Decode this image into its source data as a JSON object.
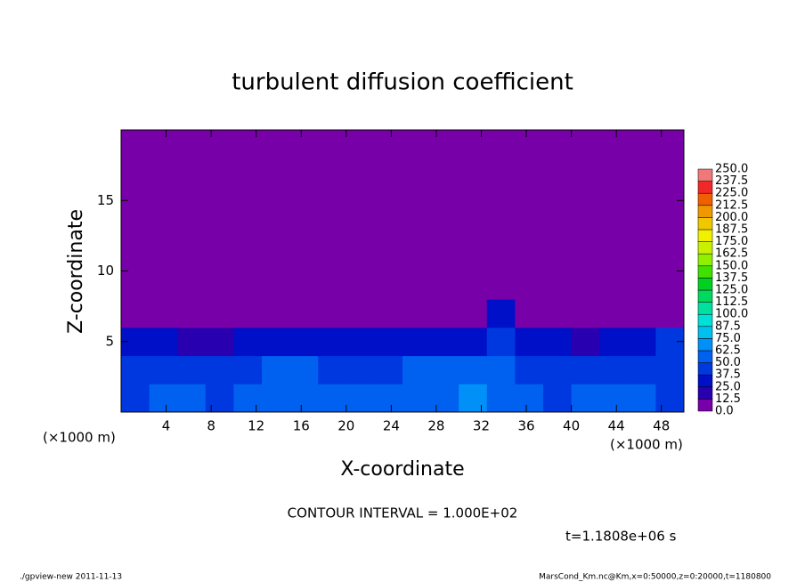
{
  "chart_data": {
    "type": "heatmap",
    "title": "turbulent diffusion coefficient",
    "x_label": "X-coordinate",
    "y_label": "Z-coordinate",
    "x_unit_labels": [
      "(×1000 m)",
      "(×1000 m)"
    ],
    "xlim": [
      0,
      50
    ],
    "ylim": [
      0,
      20
    ],
    "xticks": [
      4,
      8,
      12,
      16,
      20,
      24,
      28,
      32,
      36,
      40,
      44,
      48
    ],
    "yticks": [
      5,
      10,
      15
    ],
    "x_edges": [
      0,
      2.5,
      5,
      7.5,
      10,
      12.5,
      15,
      17.5,
      20,
      22.5,
      25,
      27.5,
      30,
      32.5,
      35,
      37.5,
      40,
      42.5,
      45,
      47.5,
      50
    ],
    "y_edges": [
      0,
      2,
      4,
      6,
      8,
      20
    ],
    "field": [
      [
        45,
        50,
        55,
        45,
        50,
        55,
        60,
        55,
        50,
        50,
        55,
        60,
        65,
        55,
        50,
        45,
        55,
        50,
        55,
        45
      ],
      [
        40,
        45,
        40,
        45,
        40,
        50,
        50,
        45,
        40,
        45,
        50,
        55,
        50,
        55,
        45,
        40,
        40,
        45,
        45,
        40
      ],
      [
        35,
        30,
        15,
        20,
        25,
        35,
        30,
        25,
        35,
        30,
        25,
        30,
        35,
        40,
        35,
        25,
        20,
        30,
        35,
        40
      ],
      [
        0,
        0,
        0,
        0,
        0,
        0,
        0,
        0,
        0,
        0,
        0,
        0,
        0,
        25,
        0,
        0,
        0,
        0,
        0,
        0
      ],
      [
        0,
        0,
        0,
        0,
        0,
        0,
        0,
        0,
        0,
        0,
        0,
        0,
        0,
        0,
        0,
        0,
        0,
        0,
        0,
        0
      ]
    ],
    "colorbar": {
      "levels": [
        {
          "value": 0,
          "label": "0.0"
        },
        {
          "value": 12.5,
          "label": "12.5"
        },
        {
          "value": 25,
          "label": "25.0"
        },
        {
          "value": 37.5,
          "label": "37.5"
        },
        {
          "value": 50,
          "label": "50.0"
        },
        {
          "value": 62.5,
          "label": "62.5"
        },
        {
          "value": 75,
          "label": "75.0"
        },
        {
          "value": 87.5,
          "label": "87.5"
        },
        {
          "value": 100,
          "label": "100.0"
        },
        {
          "value": 112.5,
          "label": "112.5"
        },
        {
          "value": 125,
          "label": "125.0"
        },
        {
          "value": 137.5,
          "label": "137.5"
        },
        {
          "value": 150,
          "label": "150.0"
        },
        {
          "value": 162.5,
          "label": "162.5"
        },
        {
          "value": 175,
          "label": "175.0"
        },
        {
          "value": 187.5,
          "label": "187.5"
        },
        {
          "value": 200,
          "label": "200.0"
        },
        {
          "value": 212.5,
          "label": "212.5"
        },
        {
          "value": 225,
          "label": "225.0"
        },
        {
          "value": 237.5,
          "label": "237.5"
        },
        {
          "value": 250,
          "label": "250.0"
        }
      ],
      "colors": [
        "#7800a8",
        "#2800b0",
        "#0010c8",
        "#0038e0",
        "#0060f0",
        "#0090f8",
        "#00c0f0",
        "#00e0d8",
        "#00e0a0",
        "#00d860",
        "#00d020",
        "#40e000",
        "#90f000",
        "#c8f000",
        "#f0f000",
        "#f0c800",
        "#f09800",
        "#f06000",
        "#f02828",
        "#f07878"
      ]
    },
    "annotations": [
      "CONTOUR INTERVAL = 1.000E+02",
      "t=1.1808e+06 s"
    ],
    "footer_left": "./gpview-new  2011-11-13",
    "footer_right": "MarsCond_Km.nc@Km,x=0:50000,z=0:20000,t=1180800"
  }
}
